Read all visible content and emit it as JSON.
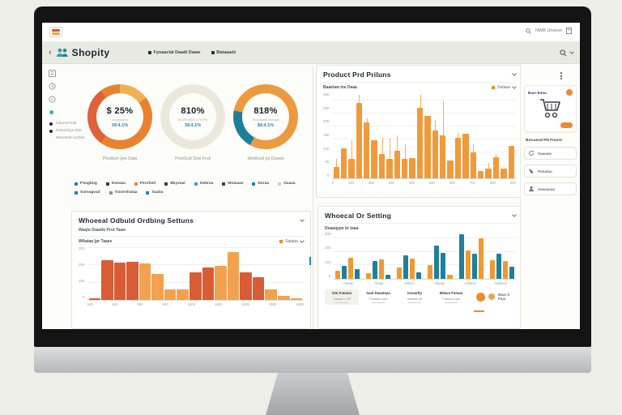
{
  "appbar": {
    "back": "‹",
    "brand": "Shopity",
    "nav": [
      {
        "label": "Fynaaclal Daadt Daaw"
      },
      {
        "label": "Bataaadz"
      }
    ],
    "search_text": "NWB Unvese"
  },
  "sidebar": {
    "legend": [
      {
        "label": "Gbured Kist"
      },
      {
        "label": "Deluvirkyu Kist"
      },
      {
        "label": "Monvtoxt xxCkkL"
      }
    ]
  },
  "donuts": [
    {
      "value": "$ 25%",
      "sub": "ununyyana",
      "pct": "39.4.1%",
      "caption": "Pivsibun (jne Data",
      "segments": [
        [
          "#f2b055",
          15
        ],
        [
          "#e8822f",
          45
        ],
        [
          "#e0603a",
          30
        ],
        [
          "#e8822f",
          10
        ]
      ]
    },
    {
      "value": "810%",
      "sub": "(2U29 4900 U7H7R)",
      "pct": "39.4.1%",
      "caption": "PronGutt Grte Froli",
      "segments": [
        [
          "#ebe8db",
          100
        ]
      ]
    },
    {
      "value": "818%",
      "sub": "Sevyasate kwinaja",
      "pct": "$9.4.1%",
      "caption": "Wedfued (jn Dossw",
      "segments": [
        [
          "#ec9a3d",
          58
        ],
        [
          "#1f7f96",
          20
        ],
        [
          "#ec9a3d",
          22
        ]
      ]
    }
  ],
  "legend_row": [
    {
      "label": "Pongbng",
      "color": "#2387a0"
    },
    {
      "label": "Doeaaa",
      "color": "#3a3f44"
    },
    {
      "label": "Perofuet",
      "color": "#ee8a2e"
    },
    {
      "label": "Bkyvaar",
      "color": "#3a3f44"
    },
    {
      "label": "Debraa",
      "color": "#4aa3b5"
    },
    {
      "label": "Mutaaas",
      "color": "#3a3f44"
    },
    {
      "label": "Doraa",
      "color": "#2387a0"
    },
    {
      "label": "Gaaaa",
      "color": "#c9cdc6"
    },
    {
      "label": "Saroagvad",
      "color": "#2387a0"
    },
    {
      "label": "Tavorshataa",
      "color": "#8b9094"
    },
    {
      "label": "Saaba",
      "color": "#2387a0"
    }
  ],
  "panels": {
    "product": {
      "title": "Product Prd Priluns",
      "subtitle": "Baaelaw Ine Daaa",
      "legend_label": "Sataaa"
    },
    "ordering": {
      "title": "Whoeeal Odbuld Ordbing Settuns",
      "subtitle": "Waqte:Daadte Prut Taaw",
      "axis_label": "WAataa (pr Taaes",
      "legend_label": "Sataaa"
    },
    "setting": {
      "title": "Whoecal Or Setting",
      "subtitle": "Deaaqype br taaa"
    }
  },
  "footer_stats": {
    "cards": [
      {
        "title": "Viai Fatatao",
        "sub": "Saaaar 4.99"
      },
      {
        "title": "Saal Daaataaa",
        "sub": "Paaaata taat"
      },
      {
        "title": "Invaarlly",
        "sub": "tataaat taf"
      },
      {
        "title": "Bdava Fataaa",
        "sub": "Paaaaa taat"
      }
    ],
    "circle_label": "Maar b Paar"
  },
  "right_rail": {
    "card_title": "Bacr-Eana",
    "cart_button": "Caar",
    "section_title": "BAcuesd PN Fraore",
    "actions": [
      {
        "label": "Saaaaw",
        "icon": "refresh-icon"
      },
      {
        "label": "Panataa",
        "icon": "phone-icon"
      },
      {
        "label": "Saaaaaaa",
        "icon": "person-icon"
      }
    ]
  },
  "chart_data": [
    {
      "id": "product-bars",
      "type": "bar",
      "title": "Product Prd Priluns",
      "color": "#f09a3c",
      "whisker_color": "#f3af62",
      "x": [
        "0",
        "100",
        "200",
        "300",
        "400",
        "500",
        "600",
        "700",
        "800",
        "900"
      ],
      "values": [
        45,
        115,
        75,
        290,
        215,
        145,
        95,
        75,
        105,
        75,
        78,
        270,
        240,
        185,
        165,
        68,
        155,
        170,
        100,
        28,
        38,
        80,
        38,
        125
      ],
      "whiskers": [
        30,
        0,
        70,
        30,
        15,
        0,
        60,
        80,
        60,
        55,
        0,
        50,
        0,
        40,
        130,
        0,
        20,
        0,
        30,
        0,
        20,
        15,
        0,
        0
      ],
      "yticks": [
        0,
        50,
        100,
        150,
        200,
        250,
        300
      ],
      "ylim": [
        0,
        330
      ],
      "grid": true,
      "gap": 2,
      "legend": "Sataaa",
      "legend_pos": "top-right"
    },
    {
      "id": "ordering-histogram",
      "type": "bar",
      "title": "Whoeeal Odbuld Ordbing Settuns",
      "x": [
        "640",
        "840",
        "840",
        "840",
        "1500",
        "1800",
        "1080",
        "1850",
        "1500"
      ],
      "values": [
        10,
        230,
        215,
        220,
        210,
        150,
        60,
        60,
        160,
        190,
        195,
        275,
        160,
        130,
        60,
        25,
        8
      ],
      "colors": [
        "#d85c36",
        "#d85c36",
        "#d85c36",
        "#d85c36",
        "#f2a24e",
        "#f2a24e",
        "#f2a24e",
        "#f2a24e",
        "#d85c36",
        "#d85c36",
        "#f2a24e",
        "#f2a24e",
        "#d85c36",
        "#d85c36",
        "#f2a24e",
        "#f2a24e",
        "#f2a24e"
      ],
      "yticks": [
        0,
        100,
        200,
        300
      ],
      "ylim": [
        0,
        310
      ],
      "grid": true,
      "gap": 1,
      "legend": "Sataaa",
      "legend_pos": "top-right"
    },
    {
      "id": "setting-grouped",
      "type": "bar",
      "title": "Whoecal Or Setting",
      "group_size": 4,
      "categories": [
        "Aduan",
        "Abaat",
        "Adbun",
        "Bdaan",
        "Adabns",
        "Adbbam"
      ],
      "values": [
        60,
        95,
        160,
        75,
        45,
        135,
        145,
        30,
        85,
        175,
        150,
        50,
        100,
        250,
        195,
        30,
        330,
        210,
        190,
        300,
        140,
        185,
        135,
        90
      ],
      "colors": [
        "#ee9a33",
        "#20809b",
        "#ee9a33",
        "#20809b",
        "#ee9a33",
        "#20809b",
        "#ee9a33",
        "#20809b",
        "#ee9a33",
        "#20809b",
        "#ee9a33",
        "#20809b",
        "#ee9a33",
        "#20809b",
        "#20809b",
        "#ee9a33",
        "#20809b",
        "#ee9a33",
        "#20809b",
        "#ee9a33",
        "#ee9a33",
        "#20809b",
        "#ee9a33",
        "#20809b"
      ],
      "yticks": [
        0,
        100,
        200,
        300
      ],
      "ylim": [
        0,
        350
      ],
      "grid": true,
      "gap": 2
    }
  ]
}
